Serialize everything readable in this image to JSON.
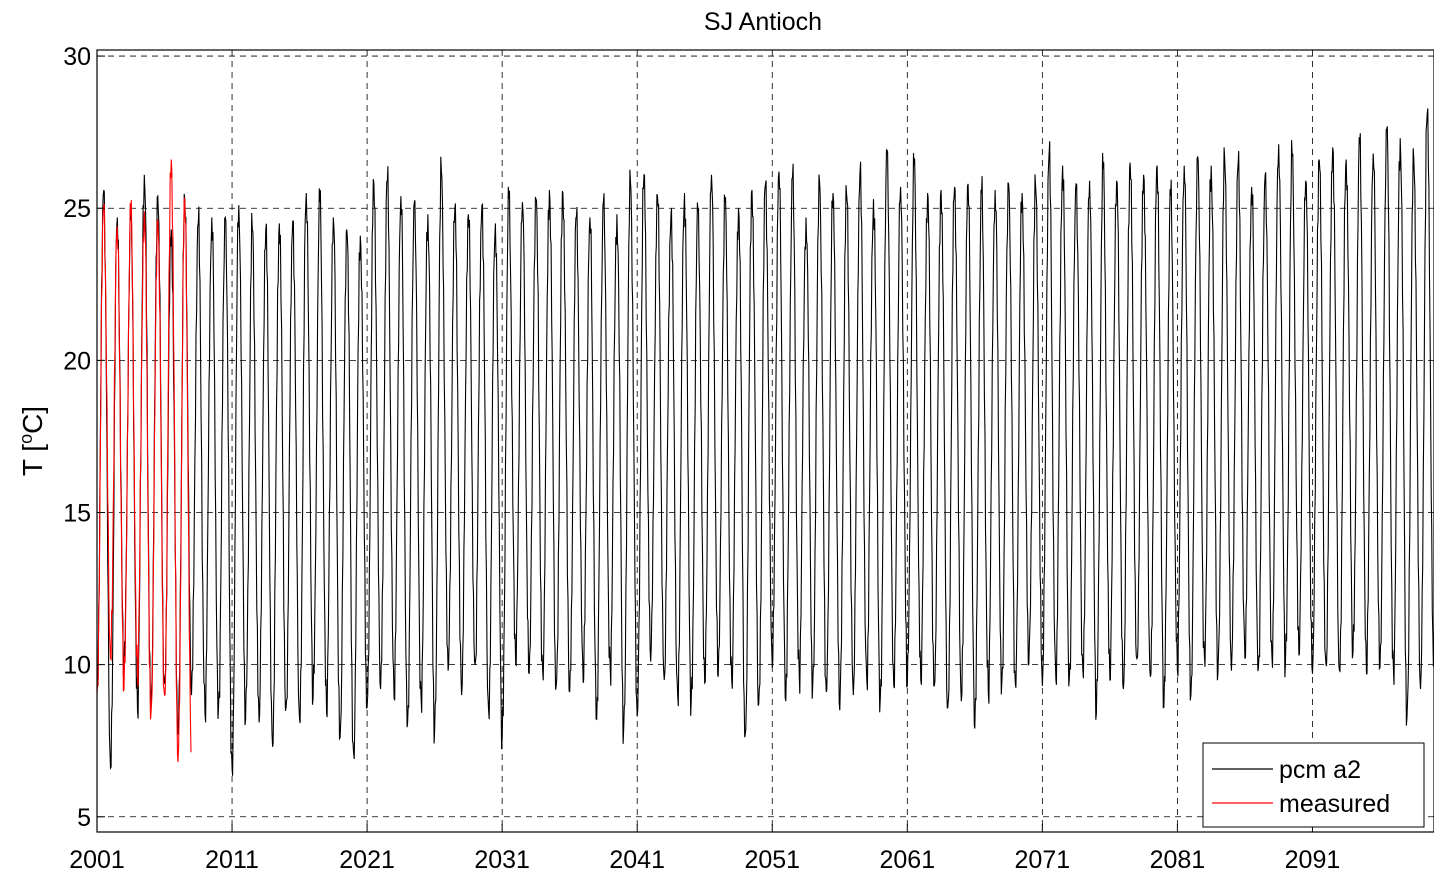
{
  "chart_data": {
    "type": "line",
    "title": "SJ Antioch",
    "ylabel": "T [",
    "ylabel_sup": "o",
    "ylabel_tail": "C]",
    "xlim": [
      2001,
      2100
    ],
    "ylim": [
      4.5,
      30.2
    ],
    "x_ticks": [
      2001,
      2011,
      2021,
      2031,
      2041,
      2051,
      2061,
      2071,
      2081,
      2091
    ],
    "x_tick_labels": [
      "2001",
      "2011",
      "2021",
      "2031",
      "2041",
      "2051",
      "2061",
      "2071",
      "2081",
      "2091"
    ],
    "y_ticks": [
      5,
      10,
      15,
      20,
      25,
      30
    ],
    "y_tick_labels": [
      "5",
      "10",
      "15",
      "20",
      "25",
      "30"
    ],
    "grid": true,
    "legend_position": "bottom-right",
    "series": [
      {
        "name": "pcm a2",
        "color": "#000000",
        "note_x": "annual cycle (start of year)",
        "x_years": [
          2001,
          2002,
          2003,
          2004,
          2005,
          2006,
          2007,
          2008,
          2009,
          2010,
          2011,
          2012,
          2013,
          2014,
          2015,
          2016,
          2017,
          2018,
          2019,
          2020,
          2021,
          2022,
          2023,
          2024,
          2025,
          2026,
          2027,
          2028,
          2029,
          2030,
          2031,
          2032,
          2033,
          2034,
          2035,
          2036,
          2037,
          2038,
          2039,
          2040,
          2041,
          2042,
          2043,
          2044,
          2045,
          2046,
          2047,
          2048,
          2049,
          2050,
          2051,
          2052,
          2053,
          2054,
          2055,
          2056,
          2057,
          2058,
          2059,
          2060,
          2061,
          2062,
          2063,
          2064,
          2065,
          2066,
          2067,
          2068,
          2069,
          2070,
          2071,
          2072,
          2073,
          2074,
          2075,
          2076,
          2077,
          2078,
          2079,
          2080,
          2081,
          2082,
          2083,
          2084,
          2085,
          2086,
          2087,
          2088,
          2089,
          2090,
          2091,
          2092,
          2093,
          2094,
          2095,
          2096,
          2097,
          2098,
          2099
        ],
        "summer_max": [
          25.6,
          24.7,
          24.6,
          26.1,
          25.4,
          24.3,
          25.3,
          24.5,
          24.7,
          24.7,
          25.1,
          24.3,
          24.3,
          24.5,
          24.6,
          25.5,
          25.2,
          24.7,
          24.3,
          24.1,
          25.8,
          25.9,
          25.4,
          25.2,
          24.8,
          26.2,
          25.0,
          24.8,
          25.1,
          24.5,
          25.3,
          25.2,
          25.3,
          25.6,
          25.5,
          24.7,
          24.7,
          25.2,
          24.8,
          25.9,
          26.1,
          25.4,
          24.8,
          25.5,
          24.9,
          26.1,
          25.2,
          25.0,
          25.6,
          25.8,
          26.2,
          26.0,
          24.7,
          25.9,
          25.5,
          25.5,
          26.2,
          25.3,
          26.9,
          25.7,
          26.4,
          25.5,
          25.6,
          25.7,
          25.8,
          25.5,
          25.6,
          25.8,
          25.5,
          25.7,
          26.8,
          26.4,
          25.8,
          25.9,
          26.3,
          25.9,
          26.5,
          26.1,
          26.4,
          25.4,
          26.4,
          26.7,
          26.4,
          26.6,
          26.5,
          25.7,
          26.1,
          27.1,
          26.7,
          25.9,
          26.6,
          27.0,
          26.6,
          27.1,
          26.8,
          27.6,
          27.3,
          26.7,
          28.1
        ],
        "winter_min": [
          9.2,
          6.6,
          9.7,
          8.5,
          8.8,
          9.4,
          7.7,
          9.0,
          8.4,
          8.6,
          6.6,
          8.2,
          8.1,
          7.3,
          8.6,
          8.2,
          8.9,
          8.4,
          7.6,
          7.1,
          8.6,
          9.2,
          8.9,
          8.1,
          8.9,
          7.8,
          9.8,
          9.0,
          10.0,
          8.5,
          7.6,
          10.0,
          9.7,
          9.8,
          9.3,
          9.1,
          9.4,
          8.2,
          9.9,
          7.9,
          8.3,
          10.1,
          9.5,
          9.0,
          8.8,
          9.4,
          9.6,
          9.5,
          7.7,
          8.7,
          9.9,
          8.8,
          9.6,
          9.4,
          9.1,
          8.5,
          9.0,
          9.5,
          8.9,
          9.3,
          9.3,
          9.5,
          9.3,
          8.6,
          8.8,
          7.9,
          9.1,
          9.4,
          9.4,
          10.0,
          9.3,
          9.5,
          9.6,
          9.8,
          8.4,
          9.5,
          9.2,
          10.2,
          9.6,
          8.6,
          9.8,
          9.0,
          10.3,
          9.7,
          9.8,
          10.2,
          9.9,
          10.3,
          10.0,
          10.3,
          9.7,
          10.0,
          9.8,
          10.4,
          9.7,
          9.9,
          9.8,
          8.3,
          9.2
        ]
      },
      {
        "name": "measured",
        "color": "#ff0000",
        "x_years": [
          2001,
          2002,
          2003,
          2004,
          2005,
          2006,
          2007
        ],
        "summer_max": [
          25.1,
          24.4,
          24.8,
          24.9,
          24.6,
          26.6,
          25.2
        ],
        "winter_min": [
          9.0,
          10.2,
          9.2,
          9.6,
          8.4,
          9.0,
          6.8
        ]
      }
    ]
  }
}
